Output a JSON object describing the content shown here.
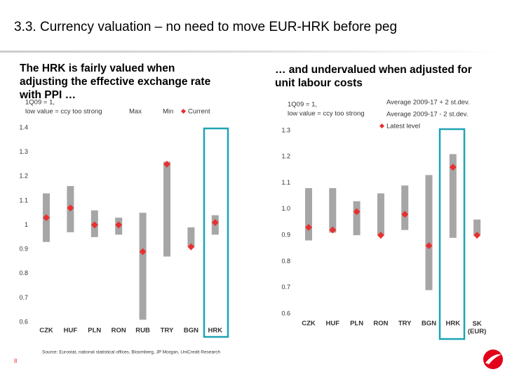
{
  "title": "3.3. Currency valuation – no need to move EUR-HRK before peg",
  "source": "Source: Eurostat, national statistical offices, Bloomberg, JP Morgan, UniCredit Research",
  "page_number": "8",
  "chart_data": [
    {
      "type": "range",
      "title": "The HRK is fairly valued when adjusting the effective exchange rate with PPI …",
      "notes": [
        "1Q09 = 1,",
        "low value = ccy too strong"
      ],
      "categories": [
        "CZK",
        "HUF",
        "PLN",
        "RON",
        "RUB",
        "TRY",
        "BGN",
        "HRK"
      ],
      "series": [
        {
          "name": "Max",
          "color": "#a6a6a6",
          "values": [
            1.13,
            1.16,
            1.06,
            1.03,
            1.05,
            1.26,
            0.99,
            1.04
          ]
        },
        {
          "name": "Min",
          "color": "#a6a6a6",
          "values": [
            0.93,
            0.97,
            0.95,
            0.96,
            0.61,
            0.87,
            0.91,
            0.96
          ]
        },
        {
          "name": "Current",
          "color": "#e8302f",
          "marker": "diamond",
          "values": [
            1.03,
            1.07,
            1.0,
            1.0,
            0.89,
            1.25,
            0.91,
            1.01
          ]
        }
      ],
      "ylim": [
        0.6,
        1.4
      ],
      "yticks": [
        0.6,
        0.7,
        0.8,
        0.9,
        {
          "value": 1.0,
          "label": "1"
        },
        1.1,
        1.2,
        1.3,
        1.4
      ],
      "highlight_index": 7,
      "highlight_color": "#1fa3b5"
    },
    {
      "type": "range",
      "title": "… and undervalued when adjusted for unit labour costs",
      "notes": [
        "1Q09 = 1,",
        "low value = ccy too strong"
      ],
      "categories": [
        "CZK",
        "HUF",
        "PLN",
        "RON",
        "TRY",
        "BGN",
        "HRK",
        "SK (EUR)"
      ],
      "series": [
        {
          "name": "Average 2009-17 + 2 st.dev.",
          "color": "#a6a6a6",
          "values": [
            1.08,
            1.08,
            1.03,
            1.06,
            1.09,
            1.13,
            1.21,
            0.96
          ]
        },
        {
          "name": "Average 2009-17 - 2 st.dev.",
          "color": "#a6a6a6",
          "values": [
            0.88,
            0.91,
            0.9,
            0.9,
            0.92,
            0.69,
            0.89,
            0.9
          ]
        },
        {
          "name": "Latest level",
          "color": "#e8302f",
          "marker": "diamond",
          "values": [
            0.93,
            0.92,
            0.99,
            0.9,
            0.98,
            0.86,
            1.16,
            0.9
          ]
        }
      ],
      "ylim": [
        0.6,
        1.3
      ],
      "yticks": [
        0.6,
        0.7,
        0.8,
        0.9,
        {
          "value": 1.0,
          "label": "1.0"
        },
        1.1,
        1.2,
        1.3
      ],
      "highlight_index": 6,
      "highlight_color": "#1fa3b5"
    }
  ]
}
